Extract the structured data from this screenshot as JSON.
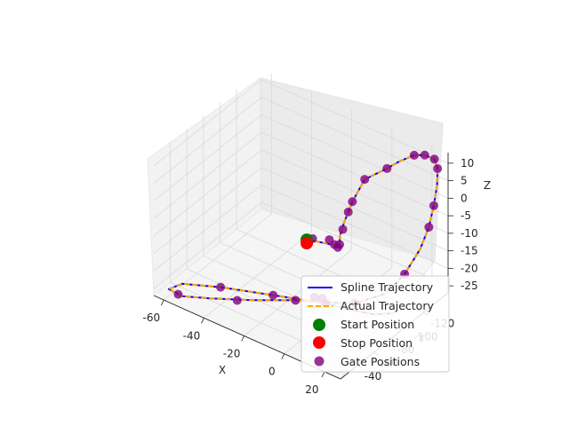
{
  "chart_data": {
    "type": "line3d",
    "title": "",
    "xlabel": "X",
    "ylabel": "Y",
    "zlabel": "Z",
    "xlim": [
      -65,
      28
    ],
    "ylim": [
      -150,
      -20
    ],
    "zlim": [
      -27,
      13
    ],
    "xticks": [
      "-60",
      "-40",
      "-20",
      "0",
      "20"
    ],
    "xtick_values": [
      -60,
      -40,
      -20,
      0,
      20
    ],
    "yticks": [
      "-120",
      "-100",
      "-80",
      "-60",
      "-40"
    ],
    "ytick_values": [
      -120,
      -100,
      -80,
      -60,
      -40
    ],
    "zticks": [
      "10",
      "5",
      "0",
      "-5",
      "-10",
      "-15",
      "-20",
      "-25"
    ],
    "ztick_values": [
      10,
      5,
      0,
      -5,
      -10,
      -15,
      -20,
      -25
    ],
    "grid": true,
    "legend_position": "lower-right",
    "series": [
      {
        "name": "Spline Trajectory",
        "style": "solid",
        "color": "#0000ff"
      },
      {
        "name": "Actual Trajectory",
        "style": "dashed",
        "color": "#ffa500"
      },
      {
        "name": "Start Position",
        "style": "marker",
        "color": "#008000"
      },
      {
        "name": "Stop Position",
        "style": "marker",
        "color": "#ff0000"
      },
      {
        "name": "Gate Positions",
        "style": "marker",
        "color": "#800080"
      }
    ],
    "trajectory_points": [
      [
        5,
        -35,
        4
      ],
      [
        7,
        -45,
        2
      ],
      [
        10,
        -55,
        0
      ],
      [
        9,
        -62,
        -2
      ],
      [
        5,
        -72,
        -5
      ],
      [
        2,
        -82,
        -7
      ],
      [
        -2,
        -92,
        -7.5
      ],
      [
        -4,
        -102,
        -6
      ],
      [
        -4,
        -112,
        -2
      ],
      [
        -2,
        -122,
        3
      ],
      [
        5,
        -132,
        6
      ],
      [
        9,
        -138,
        8
      ],
      [
        14,
        -143,
        10
      ],
      [
        18,
        -146,
        10.5
      ],
      [
        22,
        -148,
        10
      ],
      [
        24,
        -147,
        8
      ],
      [
        25,
        -144,
        4
      ],
      [
        25,
        -140,
        -1
      ],
      [
        25,
        -134,
        -6
      ],
      [
        24,
        -126,
        -11
      ],
      [
        22,
        -112,
        -16
      ],
      [
        18,
        -98,
        -20
      ],
      [
        8,
        -86,
        -23
      ],
      [
        -5,
        -78,
        -24.5
      ],
      [
        -15,
        -70,
        -25
      ],
      [
        -30,
        -55,
        -26
      ],
      [
        -45,
        -40,
        -26.5
      ],
      [
        -55,
        -30,
        -26.5
      ],
      [
        -60,
        -26,
        -25
      ],
      [
        -55,
        -30,
        -23
      ],
      [
        -40,
        -40,
        -22
      ],
      [
        -20,
        -55,
        -22
      ],
      [
        0,
        -70,
        -22
      ],
      [
        10,
        -74,
        -22
      ],
      [
        20,
        -80,
        -22
      ],
      [
        27,
        -86,
        -21
      ]
    ],
    "start": [
      5,
      -35,
      4
    ],
    "stop": [
      -2,
      -52,
      -2
    ],
    "gates": [
      [
        5,
        -42,
        3
      ],
      [
        8,
        -55,
        1
      ],
      [
        6,
        -66,
        -3
      ],
      [
        4,
        -75,
        -6
      ],
      [
        2,
        -82,
        -7
      ],
      [
        -3,
        -98,
        -7
      ],
      [
        -4,
        -107,
        -4
      ],
      [
        -4,
        -112,
        -2
      ],
      [
        -2,
        -122,
        3
      ],
      [
        5,
        -132,
        6
      ],
      [
        14,
        -143,
        10
      ],
      [
        18,
        -146,
        10.5
      ],
      [
        22,
        -148,
        10
      ],
      [
        24,
        -147,
        8
      ],
      [
        25,
        -140,
        -1
      ],
      [
        25,
        -134,
        -6
      ],
      [
        22,
        -112,
        -16
      ],
      [
        8,
        -86,
        -23
      ],
      [
        -15,
        -70,
        -25
      ],
      [
        -35,
        -48,
        -26
      ],
      [
        -57,
        -30,
        -26.5
      ],
      [
        -40,
        -40,
        -22
      ],
      [
        -20,
        -55,
        -22
      ],
      [
        0,
        -70,
        -22
      ],
      [
        -6,
        -71,
        -22
      ],
      [
        -3,
        -73,
        -22
      ]
    ]
  }
}
